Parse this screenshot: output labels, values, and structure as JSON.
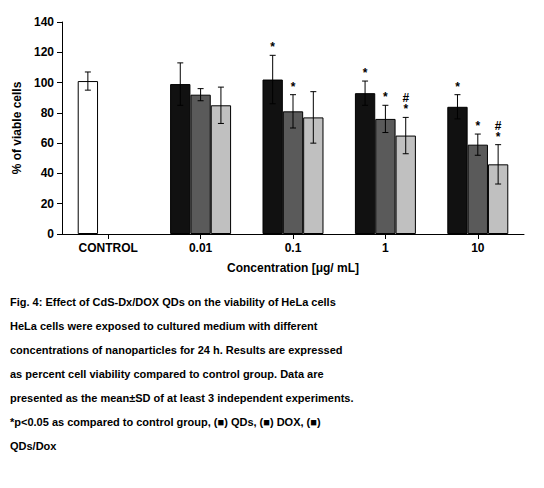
{
  "chart_data": {
    "type": "bar",
    "xlabel": "Concentration [μg/ mL]",
    "ylabel": "% of viable cells",
    "categories": [
      "CONTROL",
      "0.01",
      "0.1",
      "1",
      "10"
    ],
    "series": [
      {
        "colors": [
          "white",
          "#111111",
          "#111111",
          "#111111",
          "#111111"
        ],
        "values": [
          101,
          99,
          102,
          93,
          84
        ],
        "errors": [
          6,
          14,
          16,
          8,
          8
        ],
        "annotations": [
          null,
          null,
          [
            "*"
          ],
          [
            "*"
          ],
          [
            "*"
          ]
        ]
      },
      {
        "color": "#5a5a5a",
        "values": [
          null,
          92,
          81,
          76,
          59
        ],
        "errors": [
          null,
          4,
          11,
          9,
          7
        ],
        "annotations": [
          null,
          null,
          [
            "*"
          ],
          [
            "*"
          ],
          [
            "*"
          ]
        ]
      },
      {
        "color": "#c0c0c0",
        "values": [
          null,
          85,
          77,
          65,
          46
        ],
        "errors": [
          null,
          12,
          17,
          12,
          13
        ],
        "annotations": [
          null,
          null,
          null,
          [
            "*",
            "#"
          ],
          [
            "*",
            "#"
          ]
        ]
      }
    ],
    "ylim": [
      0,
      140
    ],
    "yticks": [
      0,
      20,
      40,
      60,
      80,
      100,
      120,
      140
    ],
    "grid": false,
    "caption": [
      "Fig. 4: Effect of CdS-Dx/DOX QDs on the viability of HeLa cells",
      "HeLa cells were exposed to cultured medium with different",
      "concentrations of nanoparticles for 24 h. Results are expressed",
      "as percent cell viability compared to control group. Data are",
      "presented as the mean±SD of at least 3 independent experiments.",
      "*p<0.05 as compared to control group, (■) QDs, (■) DOX, (■)",
      "QDs/Dox"
    ]
  }
}
